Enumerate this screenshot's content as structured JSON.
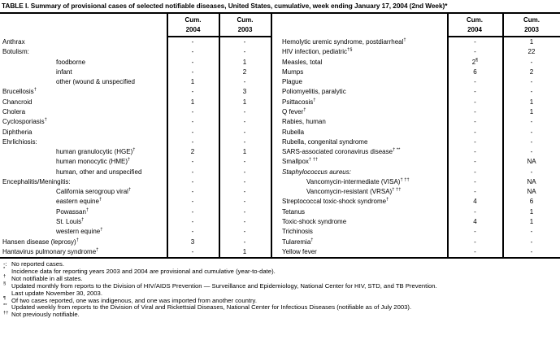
{
  "title": "TABLE I. Summary of provisional cases of selected notifiable diseases, United States, cumulative, week ending January 17, 2004 (2nd Week)*",
  "columns": {
    "cum": "Cum.",
    "y2004": "2004",
    "y2003": "2003"
  },
  "table": {
    "left_rows": [
      {
        "label": "Anthrax",
        "v2004": "-",
        "v2003": "-"
      },
      {
        "label": "Botulism:",
        "v2004": "-",
        "v2003": "-"
      },
      {
        "label": "foodborne",
        "indent": 1,
        "v2004": "-",
        "v2003": "1"
      },
      {
        "label": "infant",
        "indent": 1,
        "v2004": "-",
        "v2003": "2"
      },
      {
        "label": "other (wound & unspecified",
        "indent": 1,
        "v2004": "1",
        "v2003": "-"
      },
      {
        "label": "Brucellosis",
        "sup": "†",
        "v2004": "-",
        "v2003": "3"
      },
      {
        "label": "Chancroid",
        "v2004": "1",
        "v2003": "1"
      },
      {
        "label": "Cholera",
        "v2004": "-",
        "v2003": "-"
      },
      {
        "label": "Cyclosporiasis",
        "sup": "†",
        "v2004": "-",
        "v2003": "-"
      },
      {
        "label": "Diphtheria",
        "v2004": "-",
        "v2003": "-"
      },
      {
        "label": "Ehrlichiosis:",
        "v2004": "-",
        "v2003": "-"
      },
      {
        "label": "human granulocytic (HGE)",
        "sup": "†",
        "indent": 1,
        "v2004": "2",
        "v2003": "1"
      },
      {
        "label": "human monocytic (HME)",
        "sup": "†",
        "indent": 1,
        "v2004": "-",
        "v2003": "-"
      },
      {
        "label": "human, other and unspecified",
        "indent": 1,
        "v2004": "-",
        "v2003": "-"
      },
      {
        "label": "Encephalitis/Meningitis:",
        "v2004": "-",
        "v2003": "-"
      },
      {
        "label": "California serogroup viral",
        "sup": "†",
        "indent": 1,
        "v2004": "-",
        "v2003": "-"
      },
      {
        "label": "eastern equine",
        "sup": "†",
        "indent": 1,
        "v2004": "-",
        "v2003": "-"
      },
      {
        "label": "Powassan",
        "sup": "†",
        "indent": 1,
        "v2004": "-",
        "v2003": "-"
      },
      {
        "label": "St. Louis",
        "sup": "†",
        "indent": 1,
        "v2004": "-",
        "v2003": "-"
      },
      {
        "label": "western equine",
        "sup": "†",
        "indent": 1,
        "v2004": "-",
        "v2003": "-"
      },
      {
        "label": "Hansen disease (leprosy)",
        "sup": "†",
        "v2004": "3",
        "v2003": "-"
      },
      {
        "label": "Hantavirus pulmonary syndrome",
        "sup": "†",
        "v2004": "-",
        "v2003": "1"
      }
    ],
    "right_rows": [
      {
        "label": "Hemolytic uremic syndrome, postdiarrheal",
        "sup": "†",
        "v2004": "-",
        "v2003": "1"
      },
      {
        "label": "HIV infection, pediatric",
        "sup": "†§",
        "v2004": "-",
        "v2003": "22"
      },
      {
        "label": "Measles, total",
        "v2004": "2",
        "v2004_sup": "¶",
        "v2003": "-"
      },
      {
        "label": "Mumps",
        "v2004": "6",
        "v2003": "2"
      },
      {
        "label": "Plague",
        "v2004": "-",
        "v2003": "-"
      },
      {
        "label": "Poliomyelitis, paralytic",
        "v2004": "-",
        "v2003": "-"
      },
      {
        "label": "Psittacosis",
        "sup": "†",
        "v2004": "-",
        "v2003": "1"
      },
      {
        "label": "Q fever",
        "sup": "†",
        "v2004": "-",
        "v2003": "1"
      },
      {
        "label": "Rabies, human",
        "v2004": "-",
        "v2003": "-"
      },
      {
        "label": "Rubella",
        "v2004": "-",
        "v2003": "-"
      },
      {
        "label": "Rubella, congenital syndrome",
        "v2004": "-",
        "v2003": "-"
      },
      {
        "label": "SARS-associated coronavirus disease",
        "sup": "† **",
        "v2004": "-",
        "v2003": "-"
      },
      {
        "label": "Smallpox",
        "sup": "† ††",
        "v2004": "-",
        "v2003": "NA"
      },
      {
        "label": "Staphylococcus aureus:",
        "italic": true,
        "v2004": "-",
        "v2003": "-"
      },
      {
        "label": "Vancomycin-intermediate (VISA)",
        "sup": "† ††",
        "indent": 1,
        "v2004": "-",
        "v2003": "NA"
      },
      {
        "label": "Vancomycin-resistant (VRSA)",
        "sup": "† ††",
        "indent": 1,
        "v2004": "-",
        "v2003": "NA"
      },
      {
        "label": "Streptococcal toxic-shock syndrome",
        "sup": "†",
        "v2004": "4",
        "v2003": "6"
      },
      {
        "label": "Tetanus",
        "v2004": "-",
        "v2003": "1"
      },
      {
        "label": "Toxic-shock syndrome",
        "v2004": "4",
        "v2003": "1"
      },
      {
        "label": "Trichinosis",
        "v2004": "-",
        "v2003": "-"
      },
      {
        "label": "Tularemia",
        "sup": "†",
        "v2004": "-",
        "v2003": "-"
      },
      {
        "label": "Yellow fever",
        "v2004": "-",
        "v2003": "-"
      }
    ]
  },
  "footnotes": [
    {
      "marker": "-:",
      "sup": false,
      "lines": [
        "No reported cases."
      ]
    },
    {
      "marker": "*",
      "sup": true,
      "lines": [
        "Incidence data for reporting years 2003 and 2004 are provisional and cumulative (year-to-date)."
      ]
    },
    {
      "marker": "†",
      "sup": true,
      "lines": [
        "Not notifiable in all states."
      ]
    },
    {
      "marker": "§",
      "sup": true,
      "lines": [
        "Updated monthly from reports to the Division of HIV/AIDS Prevention — Surveillance and Epidemiology, National Center for HIV, STD, and TB Prevention.",
        "Last update November 30, 2003."
      ]
    },
    {
      "marker": "¶",
      "sup": true,
      "lines": [
        "Of two cases reported, one was indigenous, and one was imported from another country."
      ]
    },
    {
      "marker": "**",
      "sup": true,
      "lines": [
        "Updated weekly from reports to the Division of Viral and Rickettsial Diseases, National Center for Infectious Diseases (notifiable as of July 2003)."
      ]
    },
    {
      "marker": "††",
      "sup": true,
      "lines": [
        "Not previously notifiable."
      ]
    }
  ]
}
